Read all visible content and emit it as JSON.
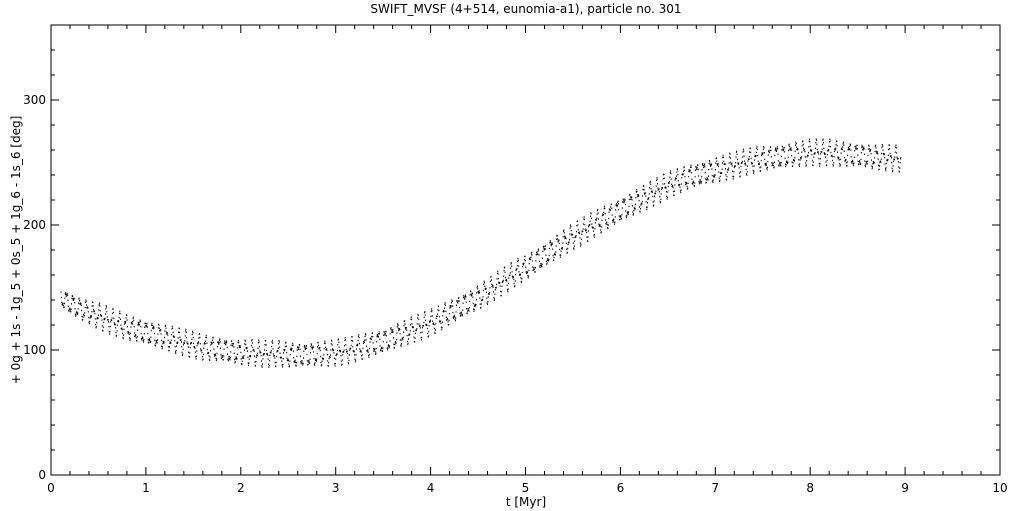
{
  "chart_data": {
    "type": "scatter",
    "title": "SWIFT_MVSF (4+514, eunomia-a1), particle no. 301",
    "xlabel": "t [Myr]",
    "ylabel": "+ 0g + 1s - 1g_5 + 0s_5 + 1g_6 - 1s_6 [deg]",
    "xlim": [
      0,
      10
    ],
    "ylim": [
      0,
      360
    ],
    "x_ticks": [
      0,
      1,
      2,
      3,
      4,
      5,
      6,
      7,
      8,
      9,
      10
    ],
    "x_tick_labels": [
      "0",
      "1",
      "2",
      "3",
      "4",
      "5",
      "6",
      "7",
      "8",
      "9",
      "10"
    ],
    "y_ticks": [
      0,
      100,
      200,
      300
    ],
    "y_tick_labels": [
      "0",
      "100",
      "200",
      "300"
    ],
    "grid": false,
    "marker_color": "#000000",
    "series": [
      {
        "x": [
          0.1,
          0.2,
          0.3,
          0.4,
          0.5,
          0.6,
          0.7,
          0.8,
          0.9,
          1.0,
          1.1,
          1.2,
          1.3,
          1.4,
          1.5,
          1.6,
          1.7,
          1.8,
          1.9,
          2.0,
          2.1,
          2.2,
          2.3,
          2.4,
          2.5,
          2.6,
          2.7,
          2.8,
          2.9,
          3.0,
          3.1,
          3.2,
          3.3,
          3.4,
          3.5,
          3.6,
          3.7,
          3.8,
          3.9,
          4.0,
          4.1,
          4.2,
          4.3,
          4.4,
          4.5,
          4.6,
          4.7,
          4.8,
          4.9,
          5.0,
          5.1,
          5.2,
          5.3,
          5.4,
          5.5,
          5.6,
          5.7,
          5.8,
          5.9,
          6.0,
          6.1,
          6.2,
          6.3,
          6.4,
          6.5,
          6.6,
          6.7,
          6.8,
          6.9,
          7.0,
          7.1,
          7.2,
          7.3,
          7.4,
          7.5,
          7.6,
          7.7,
          7.8,
          7.9,
          8.0,
          8.1,
          8.2,
          8.3,
          8.4,
          8.5,
          8.6,
          8.7,
          8.8,
          8.9,
          8.95
        ],
        "y": [
          142,
          137,
          133,
          130,
          127,
          124,
          121,
          118,
          116,
          114,
          112,
          110,
          108,
          106,
          104,
          102,
          101,
          100,
          99,
          98,
          98,
          97,
          97,
          97,
          96,
          96,
          96,
          97,
          97,
          98,
          99,
          101,
          103,
          105,
          107,
          110,
          113,
          116,
          119,
          122,
          126,
          130,
          134,
          138,
          142,
          147,
          152,
          157,
          162,
          166,
          171,
          176,
          181,
          186,
          191,
          195,
          200,
          204,
          208,
          212,
          216,
          220,
          224,
          228,
          232,
          235,
          238,
          240,
          242,
          244,
          246,
          248,
          250,
          252,
          253,
          254,
          255,
          256,
          257,
          258,
          258,
          258,
          257,
          256,
          256,
          255,
          254,
          254,
          253,
          253
        ],
        "spread": [
          7,
          8,
          8,
          8,
          9,
          9,
          9,
          9,
          9,
          9,
          9,
          9,
          9,
          9,
          9,
          9,
          9,
          9,
          9,
          9,
          9,
          9,
          9,
          9,
          9,
          9,
          9,
          9,
          9,
          9,
          9,
          9,
          9,
          9,
          9,
          9,
          9,
          9,
          9,
          9,
          9,
          9,
          9,
          9,
          9,
          9,
          9,
          9,
          9,
          9,
          9,
          9,
          9,
          9,
          9,
          9,
          9,
          9,
          9,
          9,
          9,
          9,
          9,
          9,
          9,
          9,
          9,
          9,
          9,
          9,
          9,
          9,
          9,
          9,
          9,
          9,
          9,
          9,
          9,
          9,
          9,
          9,
          9,
          9,
          9,
          9,
          9,
          9,
          9,
          9
        ]
      }
    ]
  }
}
